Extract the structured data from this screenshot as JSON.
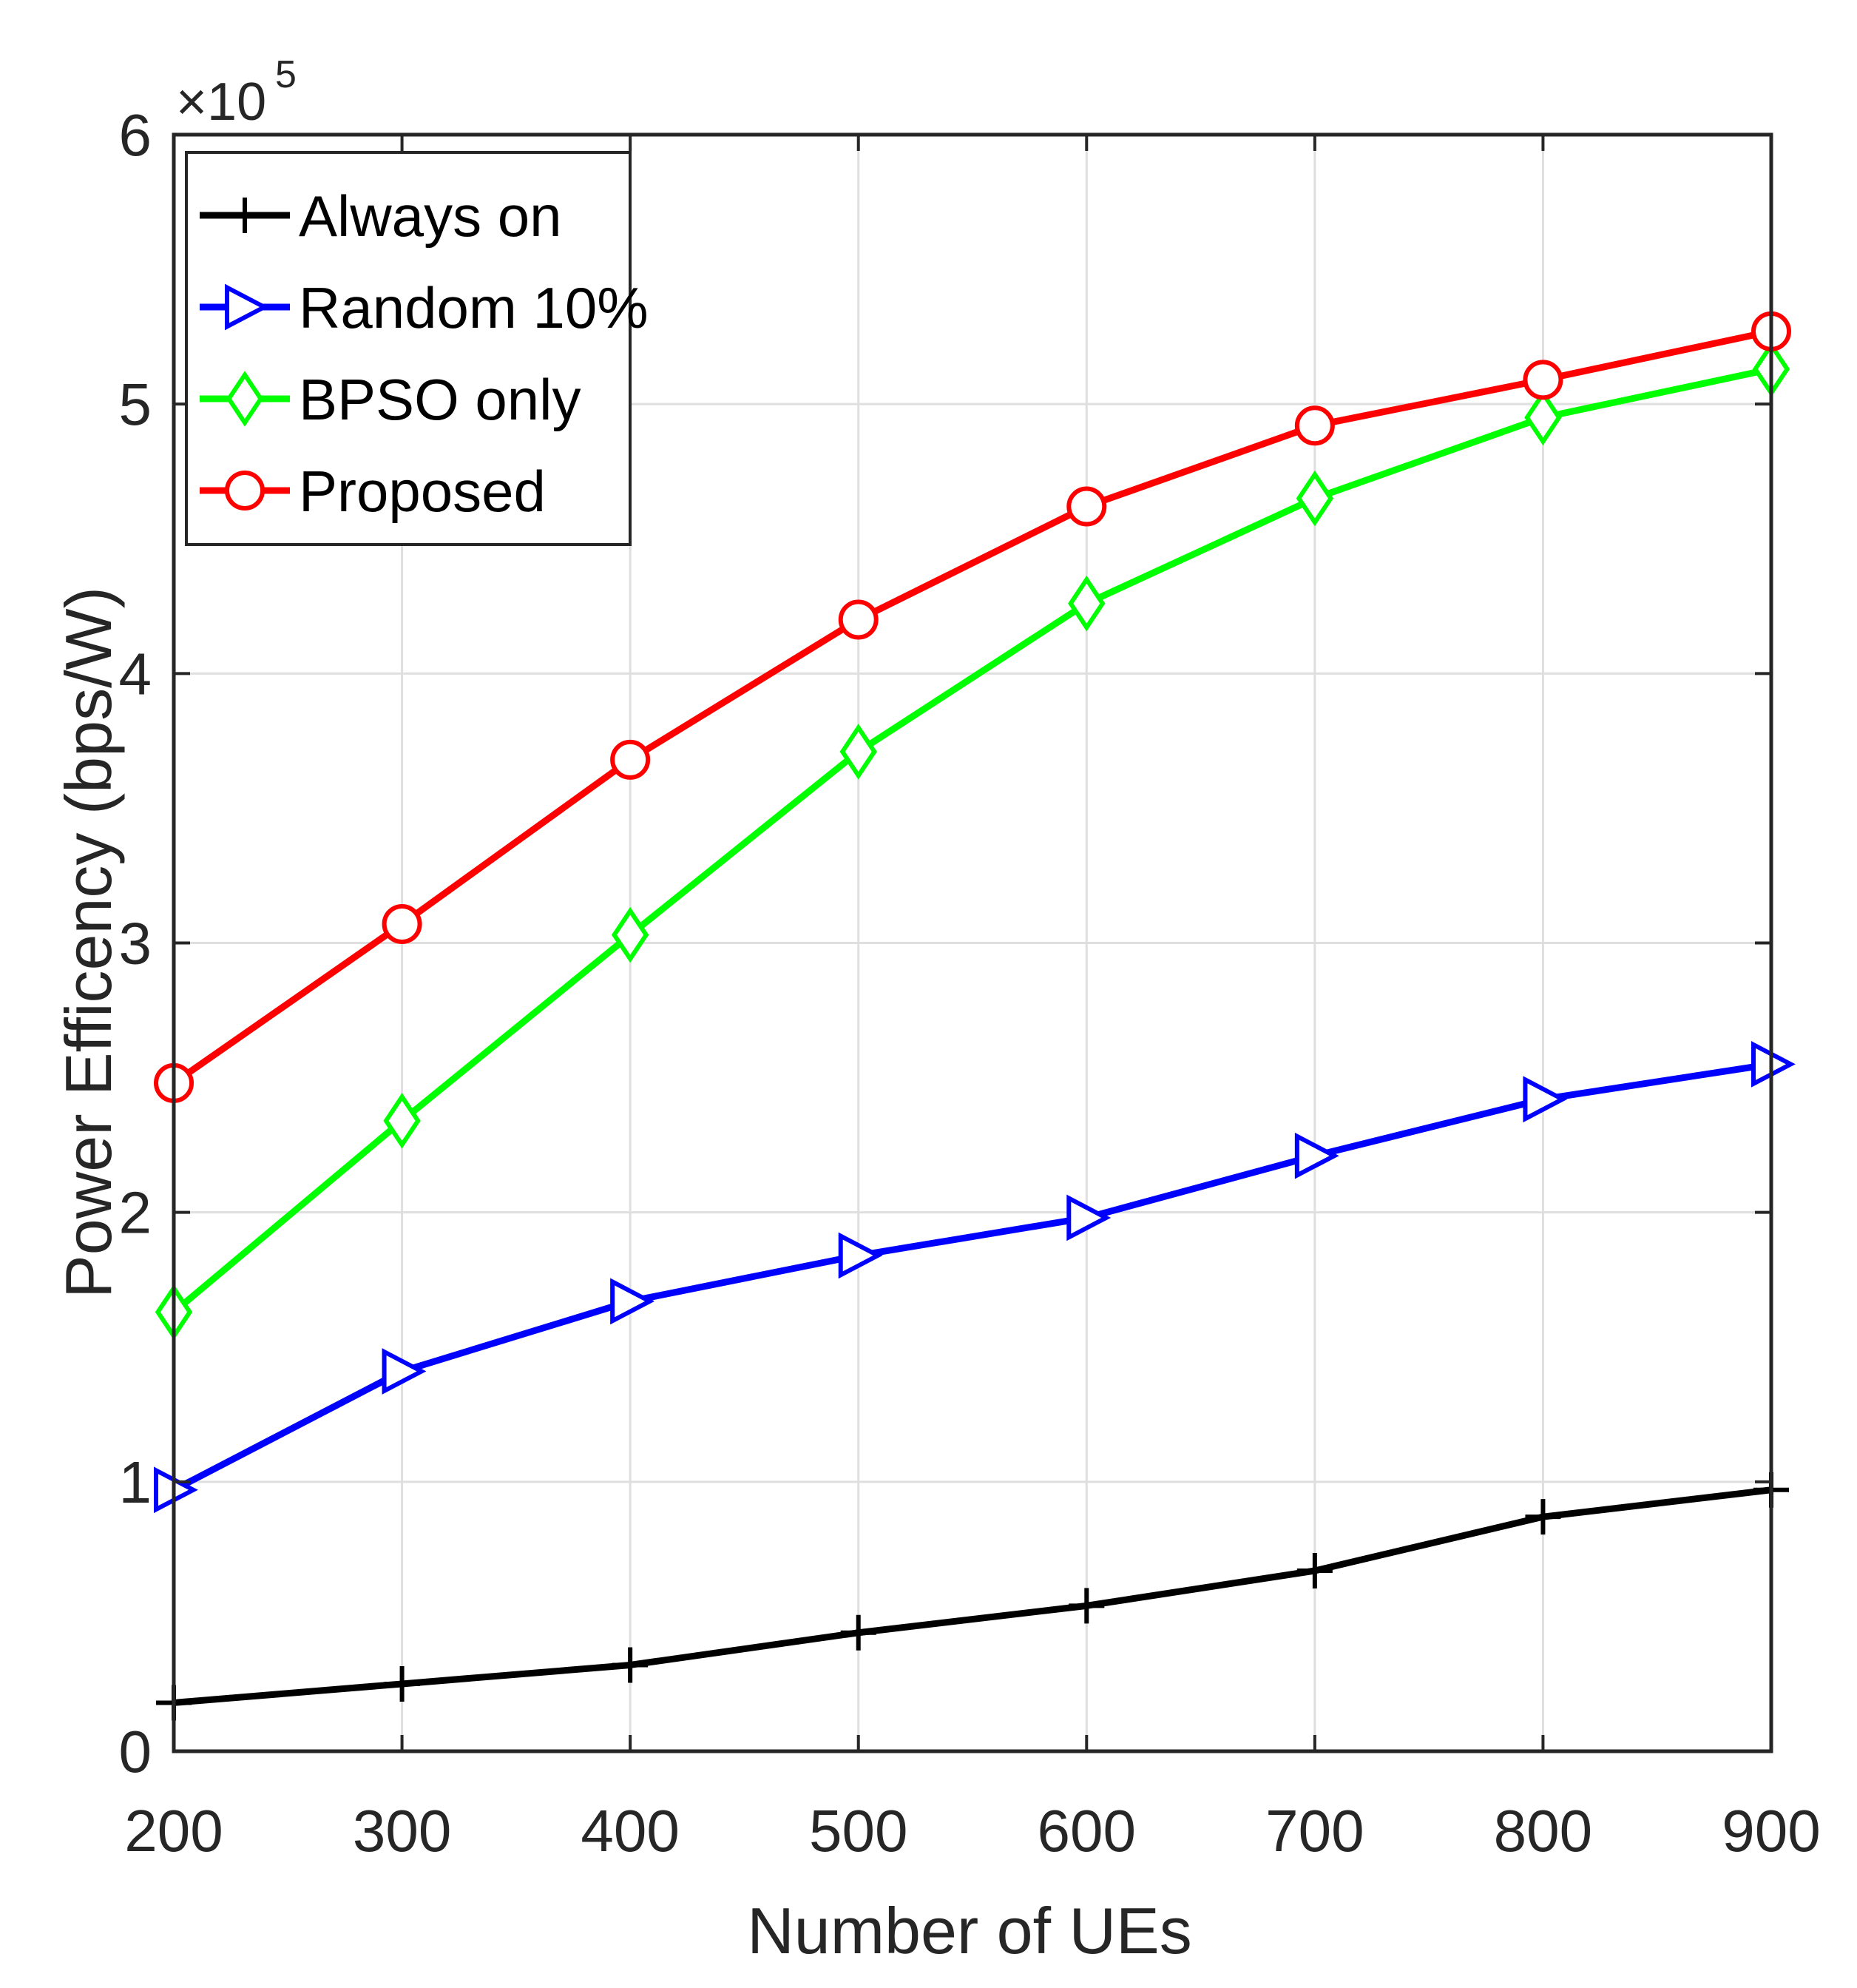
{
  "chart_data": {
    "type": "line",
    "title": "",
    "xlabel": "Number of UEs",
    "ylabel": "Power Efficency (bps/W)",
    "x": [
      200,
      300,
      400,
      500,
      600,
      700,
      800,
      900
    ],
    "xlim": [
      200,
      900
    ],
    "ylim": [
      0,
      6
    ],
    "y_multiplier": "×10",
    "y_multiplier_exponent": "5",
    "xticks": [
      "200",
      "300",
      "400",
      "500",
      "600",
      "700",
      "800",
      "900"
    ],
    "yticks": [
      "0",
      "1",
      "2",
      "3",
      "4",
      "5",
      "6"
    ],
    "grid": true,
    "legend_position": "top-left",
    "series": [
      {
        "name": "Always on",
        "color": "#000000",
        "marker": "plus",
        "values": [
          0.18,
          0.25,
          0.32,
          0.44,
          0.54,
          0.67,
          0.87,
          0.97
        ]
      },
      {
        "name": "Random 10%",
        "color": "#0000ff",
        "marker": "triangle-right",
        "values": [
          0.97,
          1.41,
          1.67,
          1.84,
          1.98,
          2.21,
          2.42,
          2.55
        ]
      },
      {
        "name": "BPSO only",
        "color": "#00ff00",
        "marker": "diamond",
        "values": [
          1.63,
          2.34,
          3.03,
          3.71,
          4.26,
          4.65,
          4.95,
          5.13
        ]
      },
      {
        "name": "Proposed",
        "color": "#ff0000",
        "marker": "circle",
        "values": [
          2.48,
          3.07,
          3.68,
          4.2,
          4.62,
          4.92,
          5.09,
          5.27
        ]
      }
    ]
  }
}
